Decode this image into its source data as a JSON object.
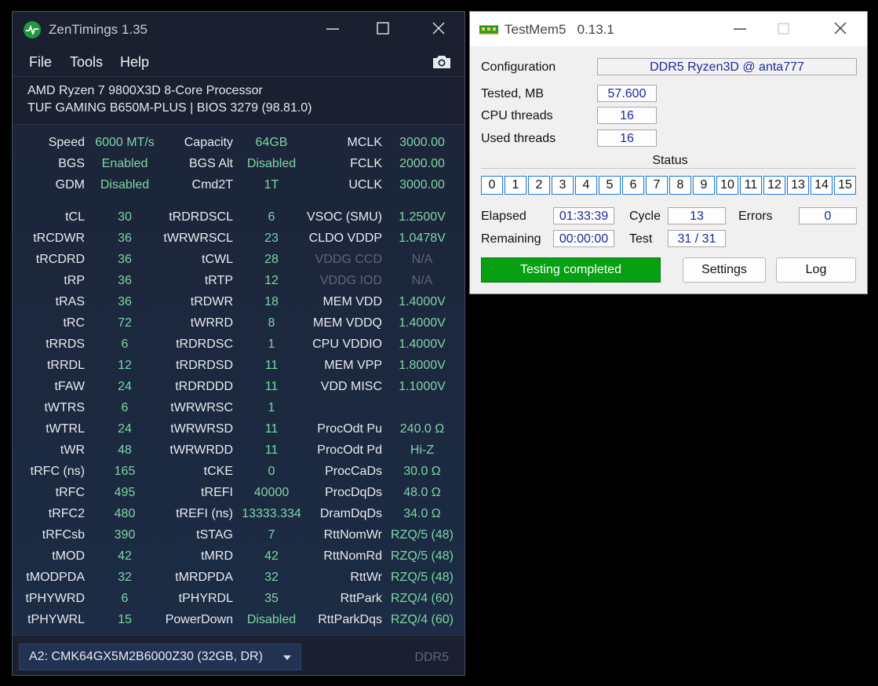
{
  "zentimings": {
    "title": "ZenTimings 1.35",
    "menu": [
      "File",
      "Tools",
      "Help"
    ],
    "cpu": "AMD Ryzen 7 9800X3D 8-Core Processor",
    "board": "TUF GAMING B650M-PLUS | BIOS 3279 (98.81.0)",
    "header_rows": [
      {
        "l1": "Speed",
        "v1": "6000 MT/s",
        "l2": "Capacity",
        "v2": "64GB",
        "l3": "MCLK",
        "v3": "3000.00"
      },
      {
        "l1": "BGS",
        "v1": "Enabled",
        "l2": "BGS Alt",
        "v2": "Disabled",
        "l3": "FCLK",
        "v3": "2000.00"
      },
      {
        "l1": "GDM",
        "v1": "Disabled",
        "l2": "Cmd2T",
        "v2": "1T",
        "l3": "UCLK",
        "v3": "3000.00"
      }
    ],
    "timing_rows": [
      {
        "l1": "tCL",
        "v1": "30",
        "l2": "tRDRDSCL",
        "v2": "6",
        "l3": "VSOC (SMU)",
        "v3": "1.2500V"
      },
      {
        "l1": "tRCDWR",
        "v1": "36",
        "l2": "tWRWRSCL",
        "v2": "23",
        "l3": "CLDO VDDP",
        "v3": "1.0478V"
      },
      {
        "l1": "tRCDRD",
        "v1": "36",
        "l2": "tCWL",
        "v2": "28",
        "l3": "VDDG CCD",
        "v3": "N/A"
      },
      {
        "l1": "tRP",
        "v1": "36",
        "l2": "tRTP",
        "v2": "12",
        "l3": "VDDG IOD",
        "v3": "N/A"
      },
      {
        "l1": "tRAS",
        "v1": "36",
        "l2": "tRDWR",
        "v2": "18",
        "l3": "MEM VDD",
        "v3": "1.4000V"
      },
      {
        "l1": "tRC",
        "v1": "72",
        "l2": "tWRRD",
        "v2": "8",
        "l3": "MEM VDDQ",
        "v3": "1.4000V"
      },
      {
        "l1": "tRRDS",
        "v1": "6",
        "l2": "tRDRDSC",
        "v2": "1",
        "l3": "CPU VDDIO",
        "v3": "1.4000V"
      },
      {
        "l1": "tRRDL",
        "v1": "12",
        "l2": "tRDRDSD",
        "v2": "11",
        "l3": "MEM VPP",
        "v3": "1.8000V"
      },
      {
        "l1": "tFAW",
        "v1": "24",
        "l2": "tRDRDDD",
        "v2": "11",
        "l3": "VDD MISC",
        "v3": "1.1000V"
      },
      {
        "l1": "tWTRS",
        "v1": "6",
        "l2": "tWRWRSC",
        "v2": "1",
        "l3": "",
        "v3": ""
      },
      {
        "l1": "tWTRL",
        "v1": "24",
        "l2": "tWRWRSD",
        "v2": "11",
        "l3": "ProcOdt Pu",
        "v3": "240.0 Ω"
      },
      {
        "l1": "tWR",
        "v1": "48",
        "l2": "tWRWRDD",
        "v2": "11",
        "l3": "ProcOdt Pd",
        "v3": "Hi-Z"
      },
      {
        "l1": "tRFC (ns)",
        "v1": "165",
        "l2": "tCKE",
        "v2": "0",
        "l3": "ProcCaDs",
        "v3": "30.0 Ω"
      },
      {
        "l1": "tRFC",
        "v1": "495",
        "l2": "tREFI",
        "v2": "40000",
        "l3": "ProcDqDs",
        "v3": "48.0 Ω"
      },
      {
        "l1": "tRFC2",
        "v1": "480",
        "l2": "tREFI (ns)",
        "v2": "13333.334",
        "l3": "DramDqDs",
        "v3": "34.0 Ω"
      },
      {
        "l1": "tRFCsb",
        "v1": "390",
        "l2": "tSTAG",
        "v2": "7",
        "l3": "RttNomWr",
        "v3": "RZQ/5 (48)"
      },
      {
        "l1": "tMOD",
        "v1": "42",
        "l2": "tMRD",
        "v2": "42",
        "l3": "RttNomRd",
        "v3": "RZQ/5 (48)"
      },
      {
        "l1": "tMODPDA",
        "v1": "32",
        "l2": "tMRDPDA",
        "v2": "32",
        "l3": "RttWr",
        "v3": "RZQ/5 (48)"
      },
      {
        "l1": "tPHYWRD",
        "v1": "6",
        "l2": "tPHYRDL",
        "v2": "35",
        "l3": "RttPark",
        "v3": "RZQ/4 (60)"
      },
      {
        "l1": "tPHYWRL",
        "v1": "15",
        "l2": "PowerDown",
        "v2": "Disabled",
        "l3": "RttParkDqs",
        "v3": "RZQ/4 (60)"
      }
    ],
    "dimm_selected": "A2: CMK64GX5M2B6000Z30 (32GB, DR)",
    "mem_type": "DDR5"
  },
  "testmem": {
    "title": "TestMem5   0.13.1",
    "configuration_label": "Configuration",
    "configuration_value": "DDR5 Ryzen3D @ anta777",
    "tested_label": "Tested, MB",
    "tested_value": "57.600",
    "cpu_threads_label": "CPU threads",
    "cpu_threads_value": "16",
    "used_threads_label": "Used threads",
    "used_threads_value": "16",
    "status_label": "Status",
    "status_cells": [
      "0",
      "1",
      "2",
      "3",
      "4",
      "5",
      "6",
      "7",
      "8",
      "9",
      "10",
      "11",
      "12",
      "13",
      "14",
      "15"
    ],
    "elapsed_label": "Elapsed",
    "elapsed_value": "01:33:39",
    "remaining_label": "Remaining",
    "remaining_value": "00:00:00",
    "cycle_label": "Cycle",
    "cycle_value": "13",
    "test_label": "Test",
    "test_value": "31 / 31",
    "errors_label": "Errors",
    "errors_value": "0",
    "progress_text": "Testing completed",
    "settings_label": "Settings",
    "log_label": "Log"
  },
  "colors": {
    "zt_value": "#7fd4a6",
    "progress": "#06a012",
    "tm_value": "#1a2a9a"
  }
}
